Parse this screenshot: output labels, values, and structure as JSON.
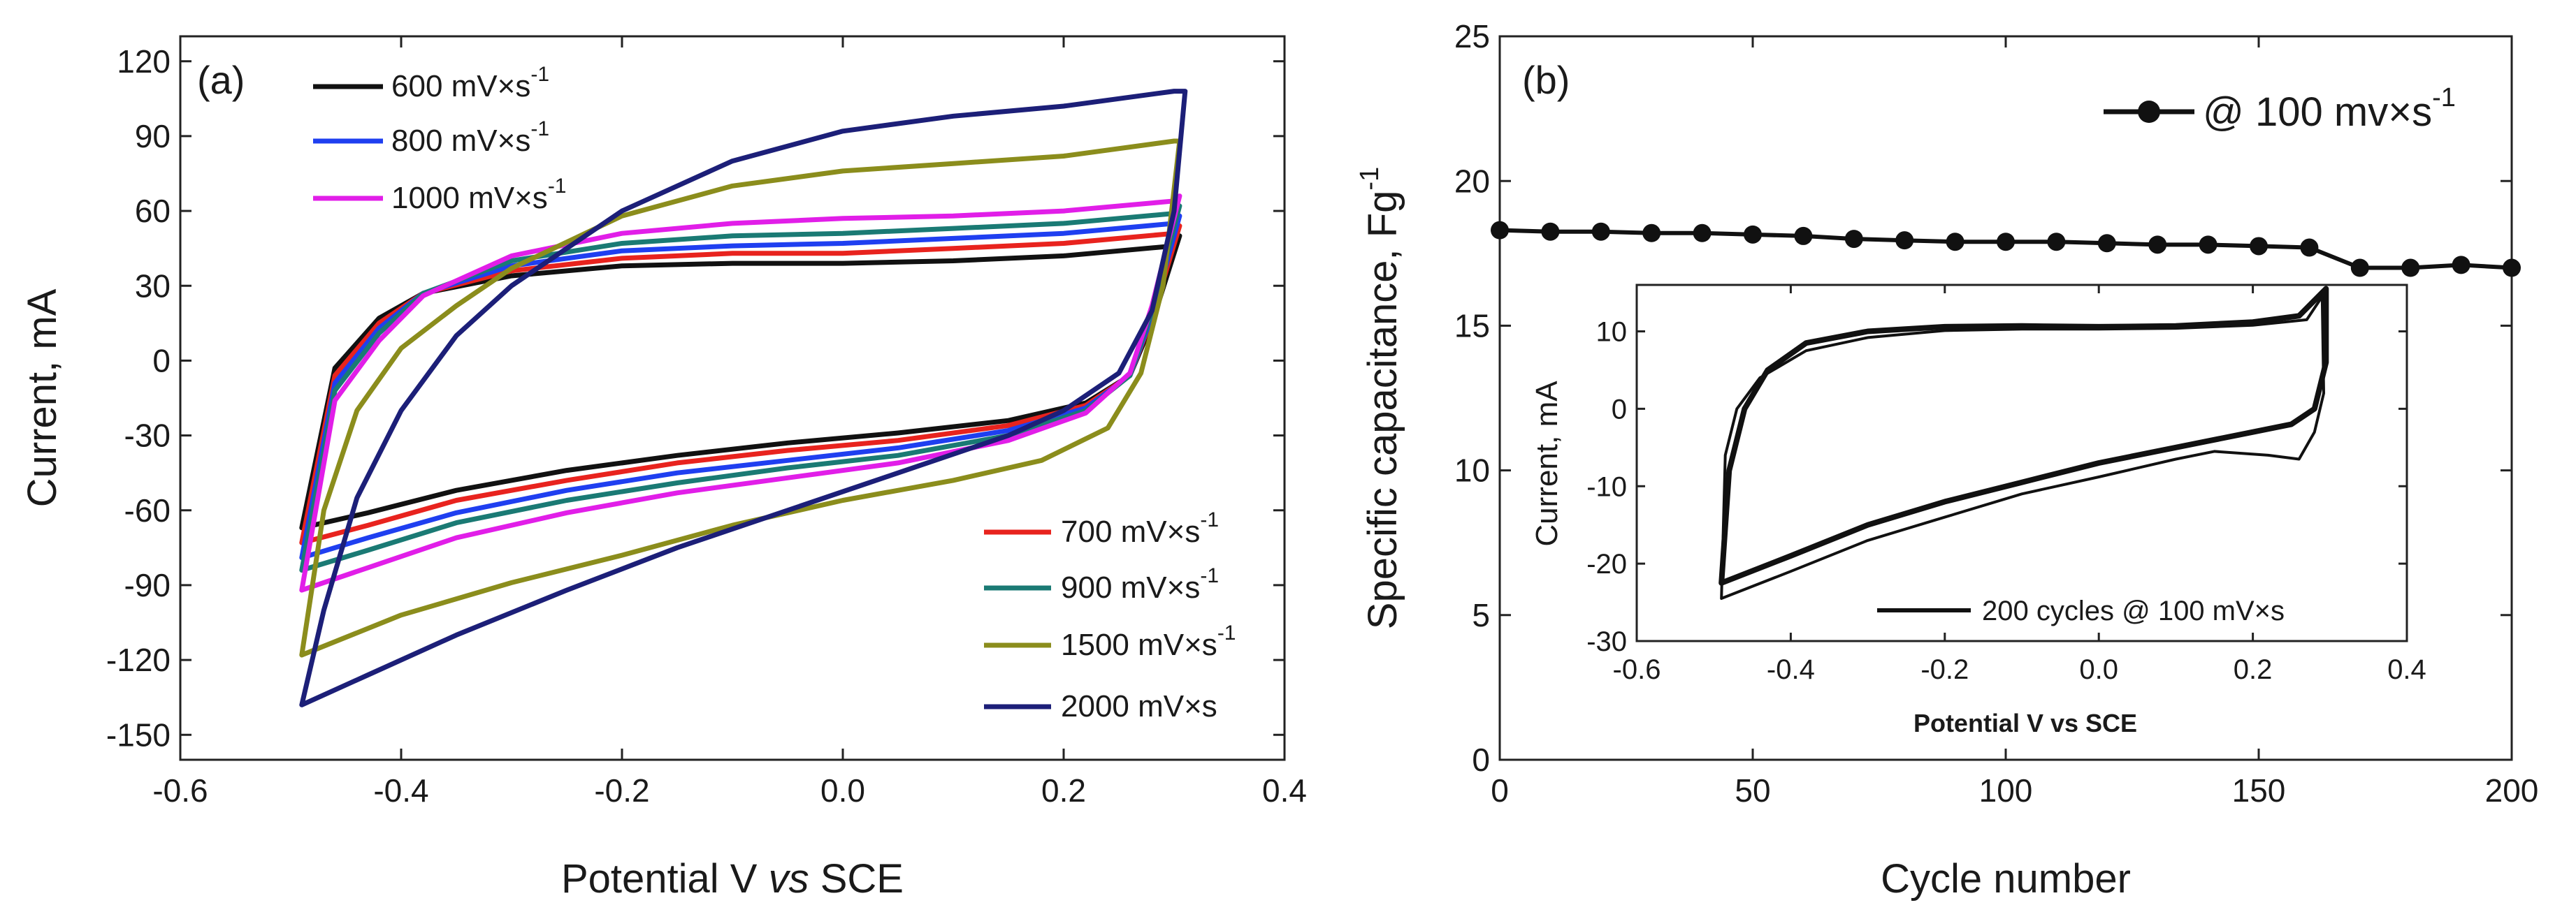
{
  "chart_data": [
    {
      "panel_label": "(a)",
      "type": "line",
      "xlabel_prefix": "Potential V ",
      "xlabel_italic": "vs",
      "xlabel_suffix": " SCE",
      "ylabel": "Current, mA",
      "xlim": [
        -0.6,
        0.4
      ],
      "ylim": [
        -160,
        130
      ],
      "xticks": [
        -0.6,
        -0.4,
        -0.2,
        0.0,
        0.2,
        0.4
      ],
      "xtick_labels": [
        "-0.6",
        "-0.4",
        "-0.2",
        "0.0",
        "0.2",
        "0.4"
      ],
      "yticks": [
        -150,
        -120,
        -90,
        -60,
        -30,
        0,
        30,
        60,
        90,
        120
      ],
      "ytick_labels": [
        "-150",
        "-120",
        "-90",
        "-60",
        "-30",
        "0",
        "30",
        "60",
        "90",
        "120"
      ],
      "series": [
        {
          "name": "600 mV×s",
          "sup": "-1",
          "color": "#111111",
          "forward": [
            [
              -0.49,
              -67
            ],
            [
              -0.46,
              -3
            ],
            [
              -0.42,
              17
            ],
            [
              -0.38,
              27
            ],
            [
              -0.3,
              34
            ],
            [
              -0.2,
              38
            ],
            [
              -0.1,
              39
            ],
            [
              0.0,
              39
            ],
            [
              0.1,
              40
            ],
            [
              0.2,
              42
            ],
            [
              0.3,
              46
            ]
          ],
          "reverse": [
            [
              0.305,
              50
            ],
            [
              0.28,
              15
            ],
            [
              0.26,
              -6
            ],
            [
              0.22,
              -17
            ],
            [
              0.15,
              -24
            ],
            [
              0.05,
              -29
            ],
            [
              -0.05,
              -33
            ],
            [
              -0.15,
              -38
            ],
            [
              -0.25,
              -44
            ],
            [
              -0.35,
              -52
            ],
            [
              -0.43,
              -61
            ],
            [
              -0.49,
              -67
            ]
          ]
        },
        {
          "name": "700 mV×s",
          "sup": "-1",
          "color": "#e8231e",
          "forward": [
            [
              -0.49,
              -73
            ],
            [
              -0.46,
              -6
            ],
            [
              -0.42,
              15
            ],
            [
              -0.38,
              27
            ],
            [
              -0.3,
              36
            ],
            [
              -0.2,
              41
            ],
            [
              -0.1,
              43
            ],
            [
              0.0,
              43
            ],
            [
              0.1,
              45
            ],
            [
              0.2,
              47
            ],
            [
              0.3,
              51
            ]
          ],
          "reverse": [
            [
              0.305,
              54
            ],
            [
              0.28,
              17
            ],
            [
              0.26,
              -6
            ],
            [
              0.22,
              -18
            ],
            [
              0.15,
              -26
            ],
            [
              0.05,
              -32
            ],
            [
              -0.05,
              -36
            ],
            [
              -0.15,
              -41
            ],
            [
              -0.25,
              -48
            ],
            [
              -0.35,
              -56
            ],
            [
              -0.43,
              -66
            ],
            [
              -0.49,
              -73
            ]
          ]
        },
        {
          "name": "800 mV×s",
          "sup": "-1",
          "color": "#1f3ff0",
          "forward": [
            [
              -0.49,
              -79
            ],
            [
              -0.46,
              -9
            ],
            [
              -0.42,
              13
            ],
            [
              -0.38,
              27
            ],
            [
              -0.3,
              38
            ],
            [
              -0.2,
              44
            ],
            [
              -0.1,
              46
            ],
            [
              0.0,
              47
            ],
            [
              0.1,
              49
            ],
            [
              0.2,
              51
            ],
            [
              0.3,
              55
            ]
          ],
          "reverse": [
            [
              0.305,
              58
            ],
            [
              0.28,
              18
            ],
            [
              0.26,
              -6
            ],
            [
              0.22,
              -19
            ],
            [
              0.15,
              -28
            ],
            [
              0.05,
              -35
            ],
            [
              -0.05,
              -40
            ],
            [
              -0.15,
              -45
            ],
            [
              -0.25,
              -52
            ],
            [
              -0.35,
              -61
            ],
            [
              -0.43,
              -71
            ],
            [
              -0.49,
              -79
            ]
          ]
        },
        {
          "name": "900 mV×s",
          "sup": "-1",
          "color": "#1a7a74",
          "forward": [
            [
              -0.49,
              -84
            ],
            [
              -0.46,
              -12
            ],
            [
              -0.42,
              11
            ],
            [
              -0.38,
              27
            ],
            [
              -0.3,
              40
            ],
            [
              -0.2,
              47
            ],
            [
              -0.1,
              50
            ],
            [
              0.0,
              51
            ],
            [
              0.1,
              53
            ],
            [
              0.2,
              55
            ],
            [
              0.3,
              59
            ]
          ],
          "reverse": [
            [
              0.305,
              62
            ],
            [
              0.28,
              20
            ],
            [
              0.26,
              -6
            ],
            [
              0.22,
              -20
            ],
            [
              0.15,
              -30
            ],
            [
              0.05,
              -38
            ],
            [
              -0.05,
              -43
            ],
            [
              -0.15,
              -49
            ],
            [
              -0.25,
              -56
            ],
            [
              -0.35,
              -65
            ],
            [
              -0.43,
              -76
            ],
            [
              -0.49,
              -84
            ]
          ]
        },
        {
          "name": "1000 mV×s",
          "sup": "-1",
          "color": "#e11ee8",
          "forward": [
            [
              -0.49,
              -92
            ],
            [
              -0.46,
              -16
            ],
            [
              -0.42,
              8
            ],
            [
              -0.38,
              26
            ],
            [
              -0.3,
              42
            ],
            [
              -0.2,
              51
            ],
            [
              -0.1,
              55
            ],
            [
              0.0,
              57
            ],
            [
              0.1,
              58
            ],
            [
              0.2,
              60
            ],
            [
              0.3,
              64
            ]
          ],
          "reverse": [
            [
              0.305,
              66
            ],
            [
              0.28,
              22
            ],
            [
              0.26,
              -5
            ],
            [
              0.22,
              -21
            ],
            [
              0.15,
              -32
            ],
            [
              0.05,
              -41
            ],
            [
              -0.05,
              -47
            ],
            [
              -0.15,
              -53
            ],
            [
              -0.25,
              -61
            ],
            [
              -0.35,
              -71
            ],
            [
              -0.43,
              -83
            ],
            [
              -0.49,
              -92
            ]
          ]
        },
        {
          "name": "1500 mV×s",
          "sup": "-1",
          "color": "#8b8d1c",
          "forward": [
            [
              -0.49,
              -118
            ],
            [
              -0.47,
              -60
            ],
            [
              -0.44,
              -20
            ],
            [
              -0.4,
              5
            ],
            [
              -0.35,
              22
            ],
            [
              -0.3,
              37
            ],
            [
              -0.2,
              58
            ],
            [
              -0.1,
              70
            ],
            [
              0.0,
              76
            ],
            [
              0.1,
              79
            ],
            [
              0.2,
              82
            ],
            [
              0.3,
              88
            ]
          ],
          "reverse": [
            [
              0.305,
              88
            ],
            [
              0.29,
              30
            ],
            [
              0.27,
              -5
            ],
            [
              0.24,
              -27
            ],
            [
              0.18,
              -40
            ],
            [
              0.1,
              -48
            ],
            [
              0.0,
              -56
            ],
            [
              -0.1,
              -66
            ],
            [
              -0.2,
              -78
            ],
            [
              -0.3,
              -89
            ],
            [
              -0.4,
              -102
            ],
            [
              -0.49,
              -118
            ]
          ]
        },
        {
          "name": "2000 mV×s",
          "sup": "",
          "color": "#1c1f78",
          "forward": [
            [
              -0.49,
              -138
            ],
            [
              -0.47,
              -100
            ],
            [
              -0.44,
              -55
            ],
            [
              -0.4,
              -20
            ],
            [
              -0.35,
              10
            ],
            [
              -0.3,
              30
            ],
            [
              -0.2,
              60
            ],
            [
              -0.1,
              80
            ],
            [
              0.0,
              92
            ],
            [
              0.1,
              98
            ],
            [
              0.2,
              102
            ],
            [
              0.3,
              108
            ]
          ],
          "reverse": [
            [
              0.31,
              108
            ],
            [
              0.3,
              60
            ],
            [
              0.28,
              20
            ],
            [
              0.25,
              -5
            ],
            [
              0.2,
              -20
            ],
            [
              0.15,
              -30
            ],
            [
              0.05,
              -45
            ],
            [
              -0.05,
              -60
            ],
            [
              -0.15,
              -75
            ],
            [
              -0.25,
              -92
            ],
            [
              -0.35,
              -110
            ],
            [
              -0.43,
              -126
            ],
            [
              -0.49,
              -138
            ]
          ]
        }
      ],
      "legend_left": [
        "600 mV×s",
        "800 mV×s",
        "1000 mV×s"
      ],
      "legend_right": [
        "700 mV×s",
        "900 mV×s",
        "1500 mV×s",
        "2000 mV×s"
      ]
    },
    {
      "panel_label": "(b)",
      "type": "line",
      "xlabel": "Cycle number",
      "ylabel": "Specific capacitance, Fg",
      "ylabel_sup": "-1",
      "xlim": [
        0,
        200
      ],
      "ylim": [
        0,
        25
      ],
      "xticks": [
        0,
        50,
        100,
        150,
        200
      ],
      "xtick_labels": [
        "0",
        "50",
        "100",
        "150",
        "200"
      ],
      "yticks": [
        0,
        5,
        10,
        15,
        20,
        25
      ],
      "ytick_labels": [
        "0",
        "5",
        "10",
        "15",
        "20",
        "25"
      ],
      "series": [
        {
          "name": "@ 100 mv×s",
          "sup": "-1",
          "color": "#111111",
          "x": [
            0,
            10,
            20,
            30,
            40,
            50,
            60,
            70,
            80,
            90,
            100,
            110,
            120,
            130,
            140,
            150,
            160,
            170,
            180,
            190,
            200
          ],
          "y": [
            18.3,
            18.25,
            18.25,
            18.2,
            18.2,
            18.15,
            18.1,
            18.0,
            17.95,
            17.9,
            17.9,
            17.9,
            17.85,
            17.8,
            17.8,
            17.75,
            17.7,
            17.0,
            17.0,
            17.1,
            17.0
          ]
        }
      ],
      "inset": {
        "type": "line",
        "xlabel": "Potential V vs SCE",
        "ylabel": "Current, mA",
        "xlim": [
          -0.6,
          0.4
        ],
        "ylim": [
          -30,
          16
        ],
        "xticks": [
          -0.6,
          -0.4,
          -0.2,
          0.0,
          0.2,
          0.4
        ],
        "xtick_labels": [
          "-0.6",
          "-0.4",
          "-0.2",
          "0.0",
          "0.2",
          "0.4"
        ],
        "yticks": [
          -30,
          -20,
          -10,
          0,
          10
        ],
        "ytick_labels": [
          "-30",
          "-20",
          "-10",
          "0",
          "10"
        ],
        "legend": "200 cycles @ 100 mV×s",
        "series": [
          {
            "name": "cycle loop inner",
            "color": "#111111",
            "points": [
              [
                -0.49,
                -22.5
              ],
              [
                -0.48,
                -8
              ],
              [
                -0.46,
                0
              ],
              [
                -0.43,
                5
              ],
              [
                -0.38,
                8.5
              ],
              [
                -0.3,
                10
              ],
              [
                -0.2,
                10.6
              ],
              [
                -0.1,
                10.7
              ],
              [
                0.0,
                10.6
              ],
              [
                0.1,
                10.7
              ],
              [
                0.2,
                11.2
              ],
              [
                0.26,
                12
              ],
              [
                0.295,
                15.5
              ],
              [
                0.295,
                6
              ],
              [
                0.28,
                0
              ],
              [
                0.25,
                -2
              ],
              [
                0.2,
                -3
              ],
              [
                0.1,
                -5
              ],
              [
                0.0,
                -7
              ],
              [
                -0.1,
                -9.5
              ],
              [
                -0.2,
                -12
              ],
              [
                -0.3,
                -15
              ],
              [
                -0.4,
                -19
              ],
              [
                -0.49,
                -22.5
              ]
            ]
          },
          {
            "name": "cycle loop outer",
            "color": "#111111",
            "points": [
              [
                -0.49,
                -24.5
              ],
              [
                -0.485,
                -6
              ],
              [
                -0.47,
                0
              ],
              [
                -0.44,
                4
              ],
              [
                -0.38,
                7.5
              ],
              [
                -0.3,
                9.2
              ],
              [
                -0.2,
                10.1
              ],
              [
                -0.1,
                10.3
              ],
              [
                0.0,
                10.3
              ],
              [
                0.1,
                10.4
              ],
              [
                0.2,
                10.8
              ],
              [
                0.27,
                11.5
              ],
              [
                0.29,
                14.5
              ],
              [
                0.292,
                2
              ],
              [
                0.28,
                -3
              ],
              [
                0.26,
                -6.5
              ],
              [
                0.22,
                -6
              ],
              [
                0.15,
                -5.5
              ],
              [
                0.1,
                -6.5
              ],
              [
                0.0,
                -8.8
              ],
              [
                -0.1,
                -11
              ],
              [
                -0.2,
                -14
              ],
              [
                -0.3,
                -17
              ],
              [
                -0.4,
                -21
              ],
              [
                -0.49,
                -24.5
              ]
            ]
          }
        ]
      }
    }
  ]
}
